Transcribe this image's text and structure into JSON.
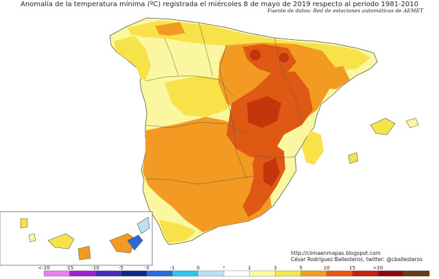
{
  "title": "Anomalía de la temperatura mínima (ºC) registrada el miércoles 8 de mayo de 2019 respecto al periodo 1981-2010",
  "source": "Fuente de datos: Red de estaciones automáticas de AEMET",
  "credits": {
    "url": "http://climaenmapas.blogspot.com",
    "author": "César Rodríguez Ballesteros, twitter: @cballesteros"
  },
  "legend": {
    "ticks": [
      "<-20",
      "-15",
      "-10",
      "-5",
      "-3",
      "-1",
      "0",
      "*",
      "1",
      "3",
      "5",
      "10",
      "15",
      ">20"
    ],
    "colors": [
      "#e77ff0",
      "#a21fd0",
      "#4a2ab8",
      "#0b2a8a",
      "#2b68dc",
      "#2fc3f2",
      "#b9e0f7",
      "#ffffff",
      "#fbfba2",
      "#f7e64a",
      "#f29a22",
      "#e5560f",
      "#c32109",
      "#8a0a07",
      "#6a3a12"
    ]
  },
  "map_colors": {
    "pale": "#fbf7a0",
    "yellow": "#f7e24a",
    "orange": "#f29a22",
    "red_orange": "#de5a14",
    "dark_red": "#c4350c",
    "sea": "#ffffff"
  }
}
